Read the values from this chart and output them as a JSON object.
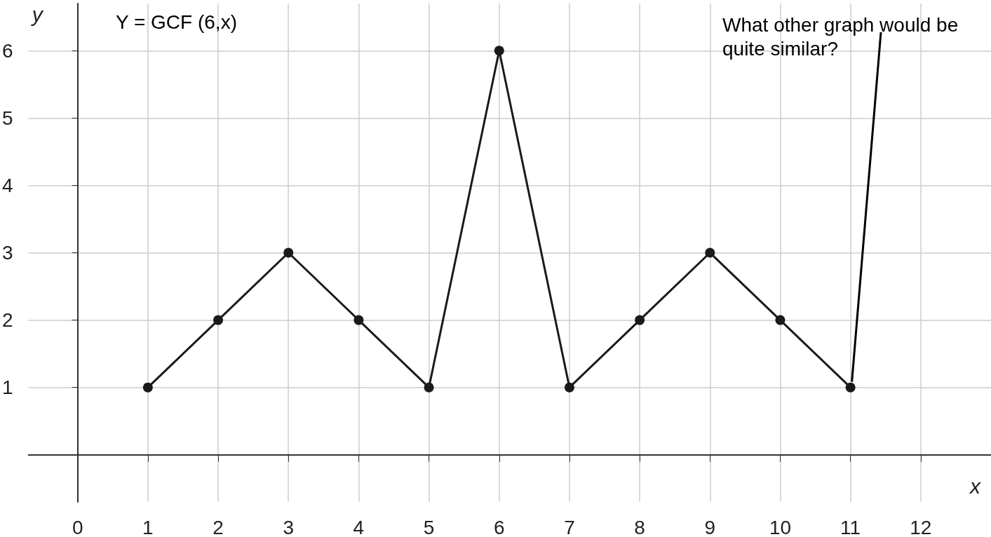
{
  "chart_data": {
    "type": "line",
    "title": "Y = GCF (6,x)",
    "xlabel": "x",
    "ylabel": "y",
    "x": [
      1,
      2,
      3,
      4,
      5,
      6,
      7,
      8,
      9,
      10,
      11
    ],
    "series": [
      {
        "color": "#1a1a1a",
        "values": [
          1,
          2,
          3,
          2,
          1,
          6,
          1,
          2,
          3,
          2,
          1
        ]
      }
    ],
    "xlim": [
      -0.7,
      13
    ],
    "ylim": [
      -0.7,
      6.7
    ],
    "xticks": [
      0,
      1,
      2,
      3,
      4,
      5,
      6,
      7,
      8,
      9,
      10,
      11,
      12
    ],
    "yticks": [
      1,
      2,
      3,
      4,
      5,
      6
    ],
    "grid": true,
    "marker": "circle",
    "line_style": "solid",
    "annotations": [
      {
        "text": "What other graph would be quite similar?",
        "x": 11,
        "y": 1
      }
    ]
  }
}
